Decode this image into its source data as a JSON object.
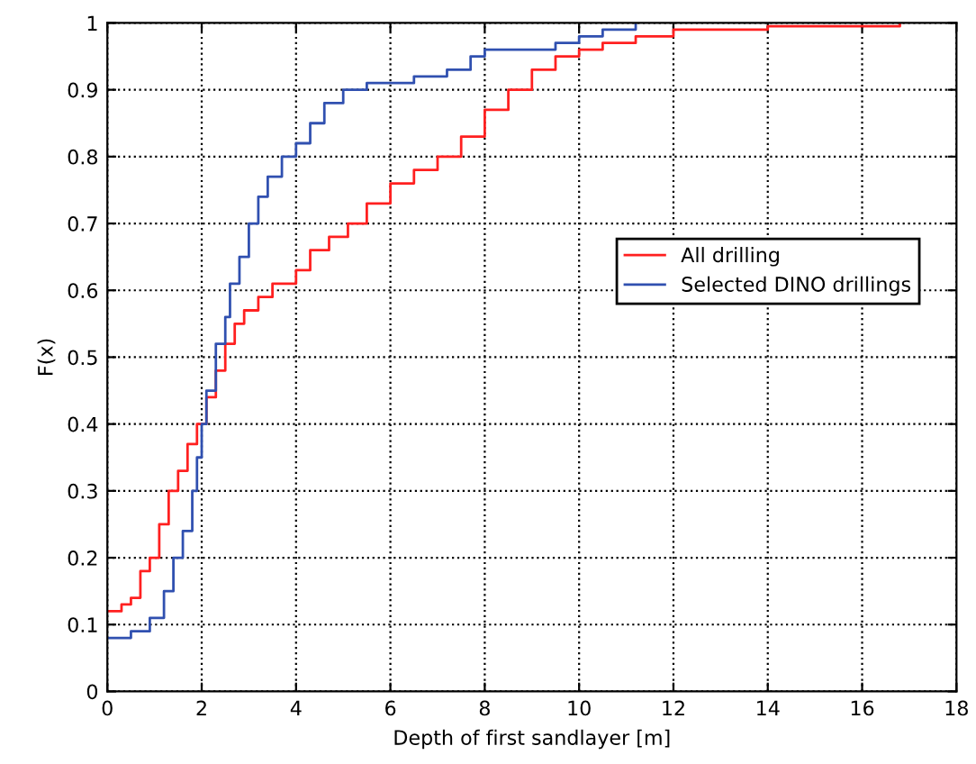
{
  "chart_data": {
    "type": "step",
    "xlabel": "Depth of first sandlayer [m]",
    "ylabel": "F(x)",
    "xlim": [
      0,
      18
    ],
    "xticks": [
      0,
      2,
      4,
      6,
      8,
      10,
      12,
      14,
      16,
      18
    ],
    "ylim": [
      0,
      1
    ],
    "yticks": [
      0,
      0.1,
      0.2,
      0.3,
      0.4,
      0.5,
      0.6,
      0.7,
      0.8,
      0.9,
      1
    ],
    "grid": true,
    "legend": "right",
    "series": [
      {
        "name": "All drilling",
        "color": "#ff2020",
        "x": [
          0,
          0.3,
          0.5,
          0.7,
          0.9,
          1.1,
          1.3,
          1.5,
          1.7,
          1.9,
          2.1,
          2.3,
          2.5,
          2.7,
          2.9,
          3.2,
          3.5,
          4.0,
          4.3,
          4.7,
          5.1,
          5.5,
          6.0,
          6.5,
          7.0,
          7.5,
          8.0,
          8.5,
          9.0,
          9.5,
          10.0,
          10.5,
          11.2,
          12.0,
          14.0,
          16.8
        ],
        "values": [
          0.12,
          0.13,
          0.14,
          0.18,
          0.2,
          0.25,
          0.3,
          0.33,
          0.37,
          0.4,
          0.44,
          0.48,
          0.52,
          0.55,
          0.57,
          0.59,
          0.61,
          0.63,
          0.66,
          0.68,
          0.7,
          0.73,
          0.76,
          0.78,
          0.8,
          0.83,
          0.87,
          0.9,
          0.93,
          0.95,
          0.96,
          0.97,
          0.98,
          0.99,
          0.995,
          1.0
        ]
      },
      {
        "name": "Selected DINO drillings",
        "color": "#3050b0",
        "x": [
          0,
          0.5,
          0.9,
          1.2,
          1.4,
          1.6,
          1.8,
          1.9,
          2.0,
          2.1,
          2.3,
          2.5,
          2.6,
          2.8,
          3.0,
          3.2,
          3.4,
          3.7,
          4.0,
          4.3,
          4.6,
          5.0,
          5.5,
          6.5,
          7.2,
          7.7,
          8.0,
          9.5,
          10.0,
          10.5,
          11.2
        ],
        "values": [
          0.08,
          0.09,
          0.11,
          0.15,
          0.2,
          0.24,
          0.3,
          0.35,
          0.4,
          0.45,
          0.52,
          0.56,
          0.61,
          0.65,
          0.7,
          0.74,
          0.77,
          0.8,
          0.82,
          0.85,
          0.88,
          0.9,
          0.91,
          0.92,
          0.93,
          0.95,
          0.96,
          0.97,
          0.98,
          0.99,
          1.0
        ]
      }
    ]
  }
}
